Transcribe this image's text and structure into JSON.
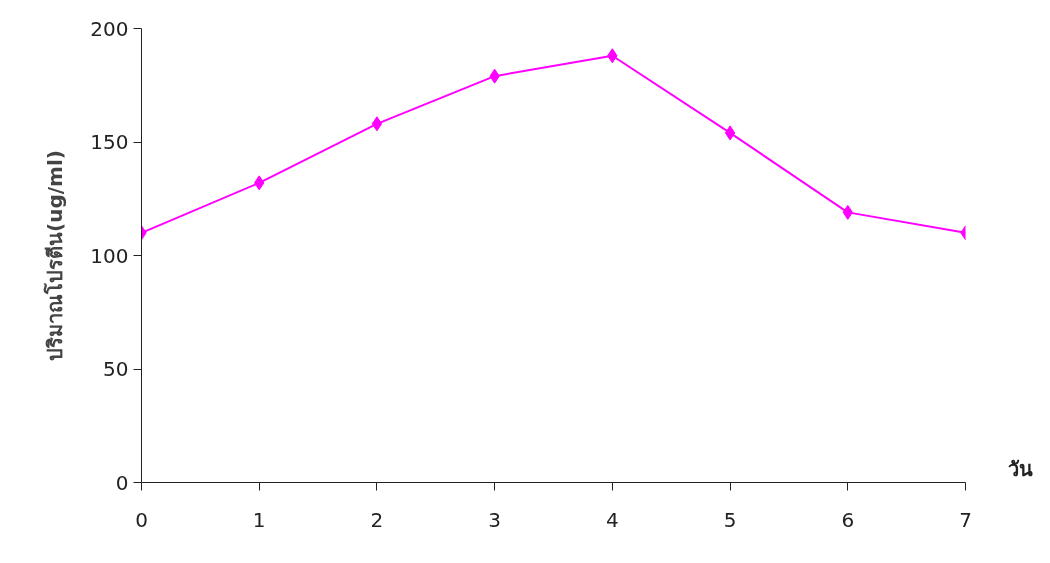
{
  "chart_data": {
    "type": "line",
    "xlabel": "วัน",
    "ylabel": "ปริมาณโปรตีน(ug/ml)",
    "x": [
      0,
      1,
      2,
      3,
      4,
      5,
      6,
      7
    ],
    "series": [
      {
        "color": "#ff00ff",
        "values": [
          110,
          132,
          158,
          179,
          188,
          154,
          119,
          110
        ]
      }
    ],
    "xlim": [
      0,
      7
    ],
    "xticks": [
      0,
      1,
      2,
      3,
      4,
      5,
      6,
      7
    ],
    "ylim": [
      0,
      200
    ],
    "yticks": [
      0,
      50,
      100,
      150,
      200
    ],
    "marker": "diamond",
    "line_style": "solid",
    "grid": false
  }
}
